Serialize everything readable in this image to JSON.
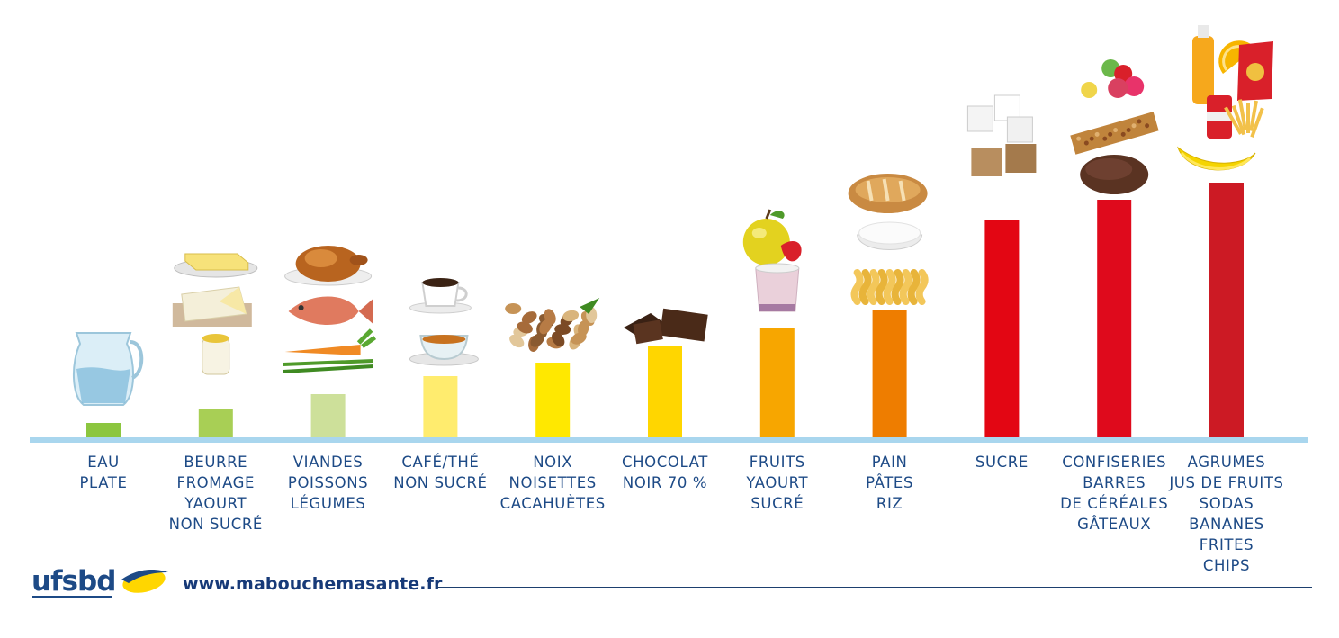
{
  "chart_data": {
    "type": "bar",
    "categories": [
      [
        "EAU",
        "PLATE"
      ],
      [
        "BEURRE",
        "FROMAGE",
        "YAOURT",
        "NON SUCRÉ"
      ],
      [
        "VIANDES",
        "POISSONS",
        "LÉGUMES"
      ],
      [
        "CAFÉ/THÉ",
        "NON SUCRÉ"
      ],
      [
        "NOIX",
        "NOISETTES",
        "CACAHUÈTES"
      ],
      [
        "CHOCOLAT",
        "NOIR 70 %"
      ],
      [
        "FRUITS",
        "YAOURT",
        "SUCRÉ"
      ],
      [
        "PAIN",
        "PÂTES",
        "RIZ"
      ],
      [
        "SUCRE"
      ],
      [
        "CONFISERIES",
        "BARRES",
        "DE CÉRÉALES",
        "GÂTEAUX"
      ],
      [
        "AGRUMES",
        "JUS DE FRUITS",
        "SODAS",
        "BANANES",
        "FRITES",
        "CHIPS"
      ]
    ],
    "values": [
      17,
      33,
      49,
      69,
      84,
      102,
      123,
      142,
      242,
      265,
      284
    ],
    "colors": [
      "#8cc63f",
      "#a8cf55",
      "#cde09a",
      "#ffec6e",
      "#ffe800",
      "#ffd600",
      "#f7a600",
      "#ee7d00",
      "#e30613",
      "#df0a1c",
      "#cc1a24"
    ],
    "icons": [
      [
        "water-jug-icon"
      ],
      [
        "butter-icon",
        "cheese-icon",
        "yogurt-icon"
      ],
      [
        "roast-chicken-icon",
        "fish-icon",
        "carrot-beans-icon"
      ],
      [
        "coffee-cup-icon",
        "tea-cup-icon"
      ],
      [
        "mixed-nuts-icon"
      ],
      [
        "dark-chocolate-icon"
      ],
      [
        "apple-strawberry-icon",
        "sweet-yogurt-icon"
      ],
      [
        "bread-icon",
        "rice-bowl-icon",
        "pasta-icon"
      ],
      [
        "sugar-cubes-icon"
      ],
      [
        "gummy-candy-icon",
        "cereal-bar-icon",
        "cookie-icon"
      ],
      [
        "juice-bottle-icon",
        "orange-slice-icon",
        "chips-bag-icon",
        "soda-can-icon",
        "fries-icon",
        "banana-icon"
      ]
    ],
    "title": "",
    "xlabel": "",
    "ylabel": "",
    "ylim": [
      0,
      300
    ],
    "grid": false,
    "legend": "none"
  },
  "footer": {
    "logo_text": "ufsbd",
    "url": "www.mabouchemasante.fr"
  }
}
